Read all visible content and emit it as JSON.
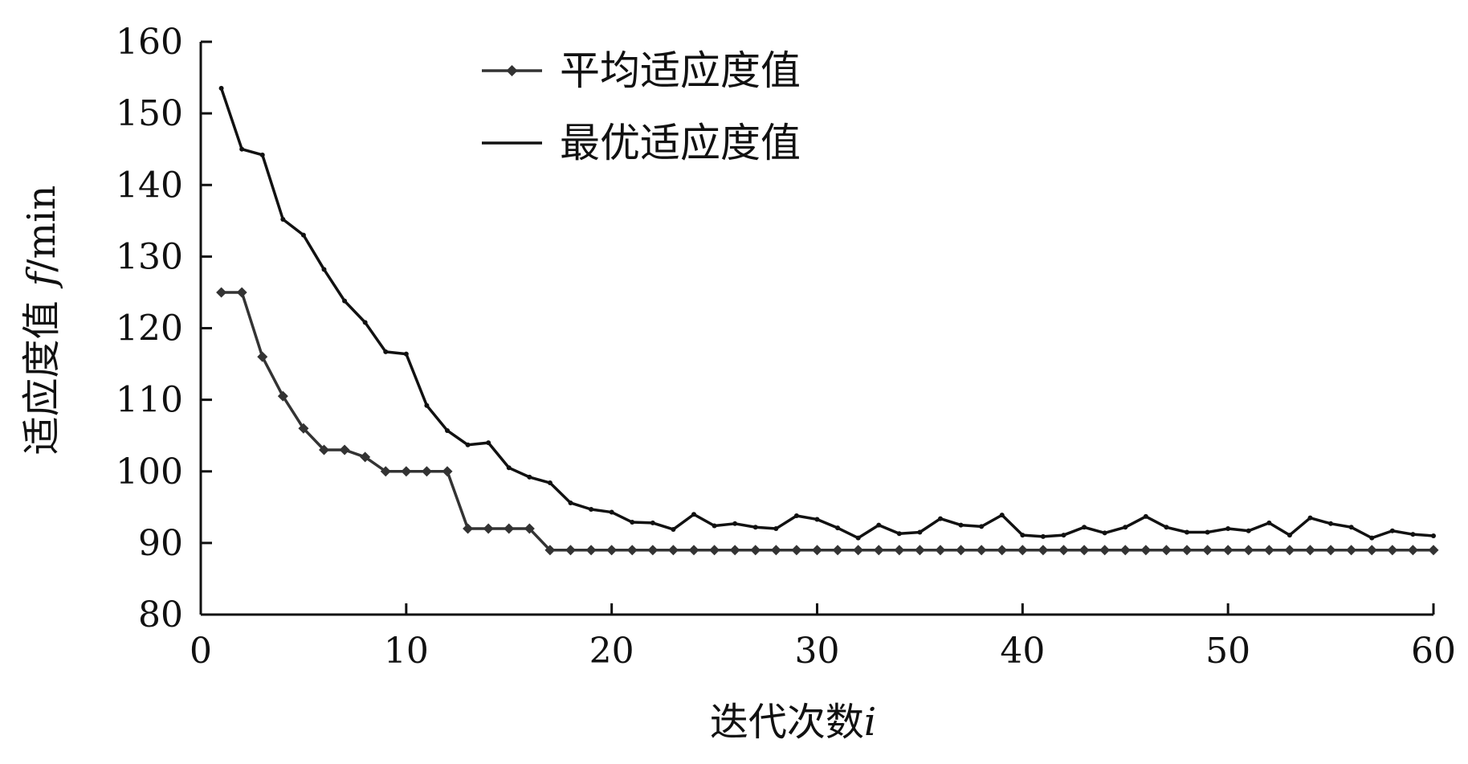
{
  "chart_data": {
    "type": "line",
    "xlabel": "迭代次数",
    "xlabel_var": "i",
    "ylabel": "适应度值",
    "ylabel_var": "f",
    "ylabel_unit": "/min",
    "xlim": [
      0,
      60
    ],
    "ylim": [
      80,
      160
    ],
    "x_ticks": [
      "0",
      "10",
      "20",
      "30",
      "40",
      "50",
      "60"
    ],
    "y_ticks": [
      "80",
      "90",
      "100",
      "110",
      "120",
      "130",
      "140",
      "150",
      "160"
    ],
    "grid": false,
    "legend_position": "top-center",
    "series": [
      {
        "name": "平均适应度值",
        "marker": "diamond",
        "color": "#333333",
        "x": [
          1,
          2,
          3,
          4,
          5,
          6,
          7,
          8,
          9,
          10,
          11,
          12,
          13,
          14,
          15,
          16,
          17,
          18,
          19,
          20,
          21,
          22,
          23,
          24,
          25,
          26,
          27,
          28,
          29,
          30,
          31,
          32,
          33,
          34,
          35,
          36,
          37,
          38,
          39,
          40,
          41,
          42,
          43,
          44,
          45,
          46,
          47,
          48,
          49,
          50,
          51,
          52,
          53,
          54,
          55,
          56,
          57,
          58,
          59,
          60
        ],
        "values": [
          125,
          125,
          116,
          110.5,
          106,
          103,
          103,
          102,
          100,
          100,
          100,
          100,
          92,
          92,
          92,
          92,
          89,
          89,
          89,
          89,
          89,
          89,
          89,
          89,
          89,
          89,
          89,
          89,
          89,
          89,
          89,
          89,
          89,
          89,
          89,
          89,
          89,
          89,
          89,
          89,
          89,
          89,
          89,
          89,
          89,
          89,
          89,
          89,
          89,
          89,
          89,
          89,
          89,
          89,
          89,
          89,
          89,
          89,
          89,
          89
        ]
      },
      {
        "name": "最优适应度值",
        "marker": "none",
        "color": "#111111",
        "x": [
          1,
          2,
          3,
          4,
          5,
          6,
          7,
          8,
          9,
          10,
          11,
          12,
          13,
          14,
          15,
          16,
          17,
          18,
          19,
          20,
          21,
          22,
          23,
          24,
          25,
          26,
          27,
          28,
          29,
          30,
          31,
          32,
          33,
          34,
          35,
          36,
          37,
          38,
          39,
          40,
          41,
          42,
          43,
          44,
          45,
          46,
          47,
          48,
          49,
          50,
          51,
          52,
          53,
          54,
          55,
          56,
          57,
          58,
          59,
          60
        ],
        "values": [
          153.5,
          145,
          144.2,
          135.2,
          133,
          128.2,
          123.8,
          120.8,
          116.7,
          116.4,
          109.2,
          105.7,
          103.7,
          104,
          100.5,
          99.2,
          98.4,
          95.6,
          94.7,
          94.3,
          92.9,
          92.8,
          91.9,
          94,
          92.4,
          92.7,
          92.2,
          92,
          93.8,
          93.3,
          92.1,
          90.7,
          92.5,
          91.3,
          91.5,
          93.4,
          92.5,
          92.3,
          93.9,
          91.1,
          90.9,
          91.1,
          92.2,
          91.4,
          92.2,
          93.7,
          92.2,
          91.5,
          91.5,
          92,
          91.7,
          92.8,
          91.1,
          93.5,
          92.7,
          92.2,
          90.7,
          91.7,
          91.2,
          91
        ]
      }
    ]
  }
}
